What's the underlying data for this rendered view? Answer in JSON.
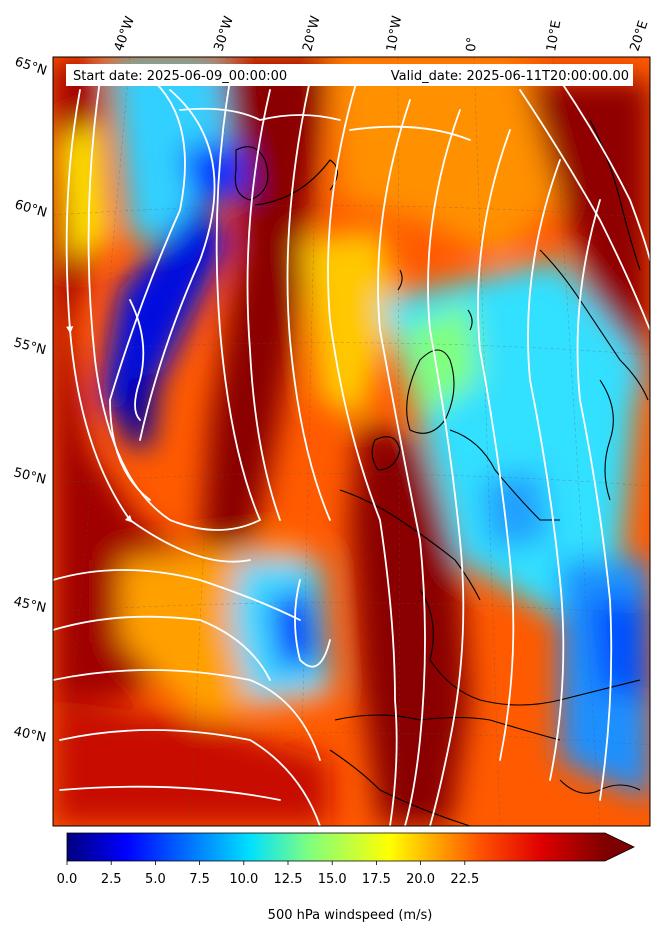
{
  "header": {
    "start_date": "Start date: 2025-06-09_00:00:00",
    "valid_date": "Valid_date: 2025-06-11T20:00:00.00"
  },
  "axes": {
    "lon_labels": [
      "40°W",
      "30°W",
      "20°W",
      "10°W",
      "0°",
      "10°E",
      "20°E"
    ],
    "lat_labels": [
      "65°N",
      "60°N",
      "55°N",
      "50°N",
      "45°N",
      "40°N"
    ]
  },
  "colorbar": {
    "label": "500 hPa windspeed (m/s)",
    "ticks": [
      "0.0",
      "2.5",
      "5.0",
      "7.5",
      "10.0",
      "12.5",
      "15.0",
      "17.5",
      "20.0",
      "22.5"
    ],
    "extend": "max",
    "colormap": "jet",
    "colors": [
      "#00007f",
      "#0000ff",
      "#007fff",
      "#00ffff",
      "#7fff7f",
      "#ffff00",
      "#ff7f00",
      "#ff0000",
      "#7f0000"
    ]
  },
  "map": {
    "field": "500 hPa wind speed with white streamlines",
    "background": "#ff5a00",
    "streamline_color": "#ffffff",
    "coastline_color": "#000000"
  }
}
